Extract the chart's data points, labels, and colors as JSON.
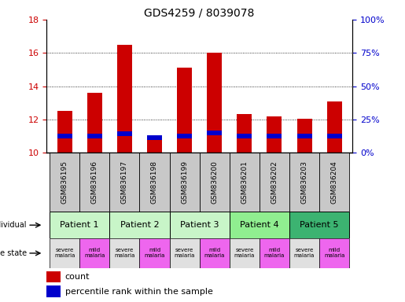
{
  "title": "GDS4259 / 8039078",
  "samples": [
    "GSM836195",
    "GSM836196",
    "GSM836197",
    "GSM836198",
    "GSM836199",
    "GSM836200",
    "GSM836201",
    "GSM836202",
    "GSM836203",
    "GSM836204"
  ],
  "count_values": [
    12.5,
    13.6,
    16.5,
    10.9,
    15.1,
    16.0,
    12.3,
    12.2,
    12.05,
    13.1
  ],
  "percentile_bottom": [
    10.85,
    10.85,
    11.0,
    10.75,
    10.85,
    11.05,
    10.85,
    10.85,
    10.85,
    10.85
  ],
  "percentile_top": [
    11.15,
    11.15,
    11.3,
    11.05,
    11.15,
    11.35,
    11.15,
    11.15,
    11.15,
    11.15
  ],
  "bar_bottom": 10.0,
  "ylim": [
    10,
    18
  ],
  "yticks_left": [
    10,
    12,
    14,
    16,
    18
  ],
  "yticks_right": [
    0,
    25,
    50,
    75,
    100
  ],
  "patients": [
    {
      "label": "Patient 1",
      "cols": [
        0,
        1
      ],
      "color": "#c8f5c8"
    },
    {
      "label": "Patient 2",
      "cols": [
        2,
        3
      ],
      "color": "#c8f5c8"
    },
    {
      "label": "Patient 3",
      "cols": [
        4,
        5
      ],
      "color": "#c8f5c8"
    },
    {
      "label": "Patient 4",
      "cols": [
        6,
        7
      ],
      "color": "#90ee90"
    },
    {
      "label": "Patient 5",
      "cols": [
        8,
        9
      ],
      "color": "#3cb371"
    }
  ],
  "disease_states": [
    {
      "label": "severe\nmalaria",
      "col": 0,
      "color": "#e0e0e0"
    },
    {
      "label": "mild\nmalaria",
      "col": 1,
      "color": "#ee66ee"
    },
    {
      "label": "severe\nmalaria",
      "col": 2,
      "color": "#e0e0e0"
    },
    {
      "label": "mild\nmalaria",
      "col": 3,
      "color": "#ee66ee"
    },
    {
      "label": "severe\nmalaria",
      "col": 4,
      "color": "#e0e0e0"
    },
    {
      "label": "mild\nmalaria",
      "col": 5,
      "color": "#ee66ee"
    },
    {
      "label": "severe\nmalaria",
      "col": 6,
      "color": "#e0e0e0"
    },
    {
      "label": "mild\nmalaria",
      "col": 7,
      "color": "#ee66ee"
    },
    {
      "label": "severe\nmalaria",
      "col": 8,
      "color": "#e0e0e0"
    },
    {
      "label": "mild\nmalaria",
      "col": 9,
      "color": "#ee66ee"
    }
  ],
  "bar_color": "#cc0000",
  "percentile_color": "#0000cc",
  "left_tick_color": "#cc0000",
  "right_tick_color": "#0000cc",
  "grid_color": "black",
  "bg_color": "#ffffff",
  "sample_bg_color": "#c8c8c8",
  "bar_width": 0.5,
  "n_samples": 10
}
